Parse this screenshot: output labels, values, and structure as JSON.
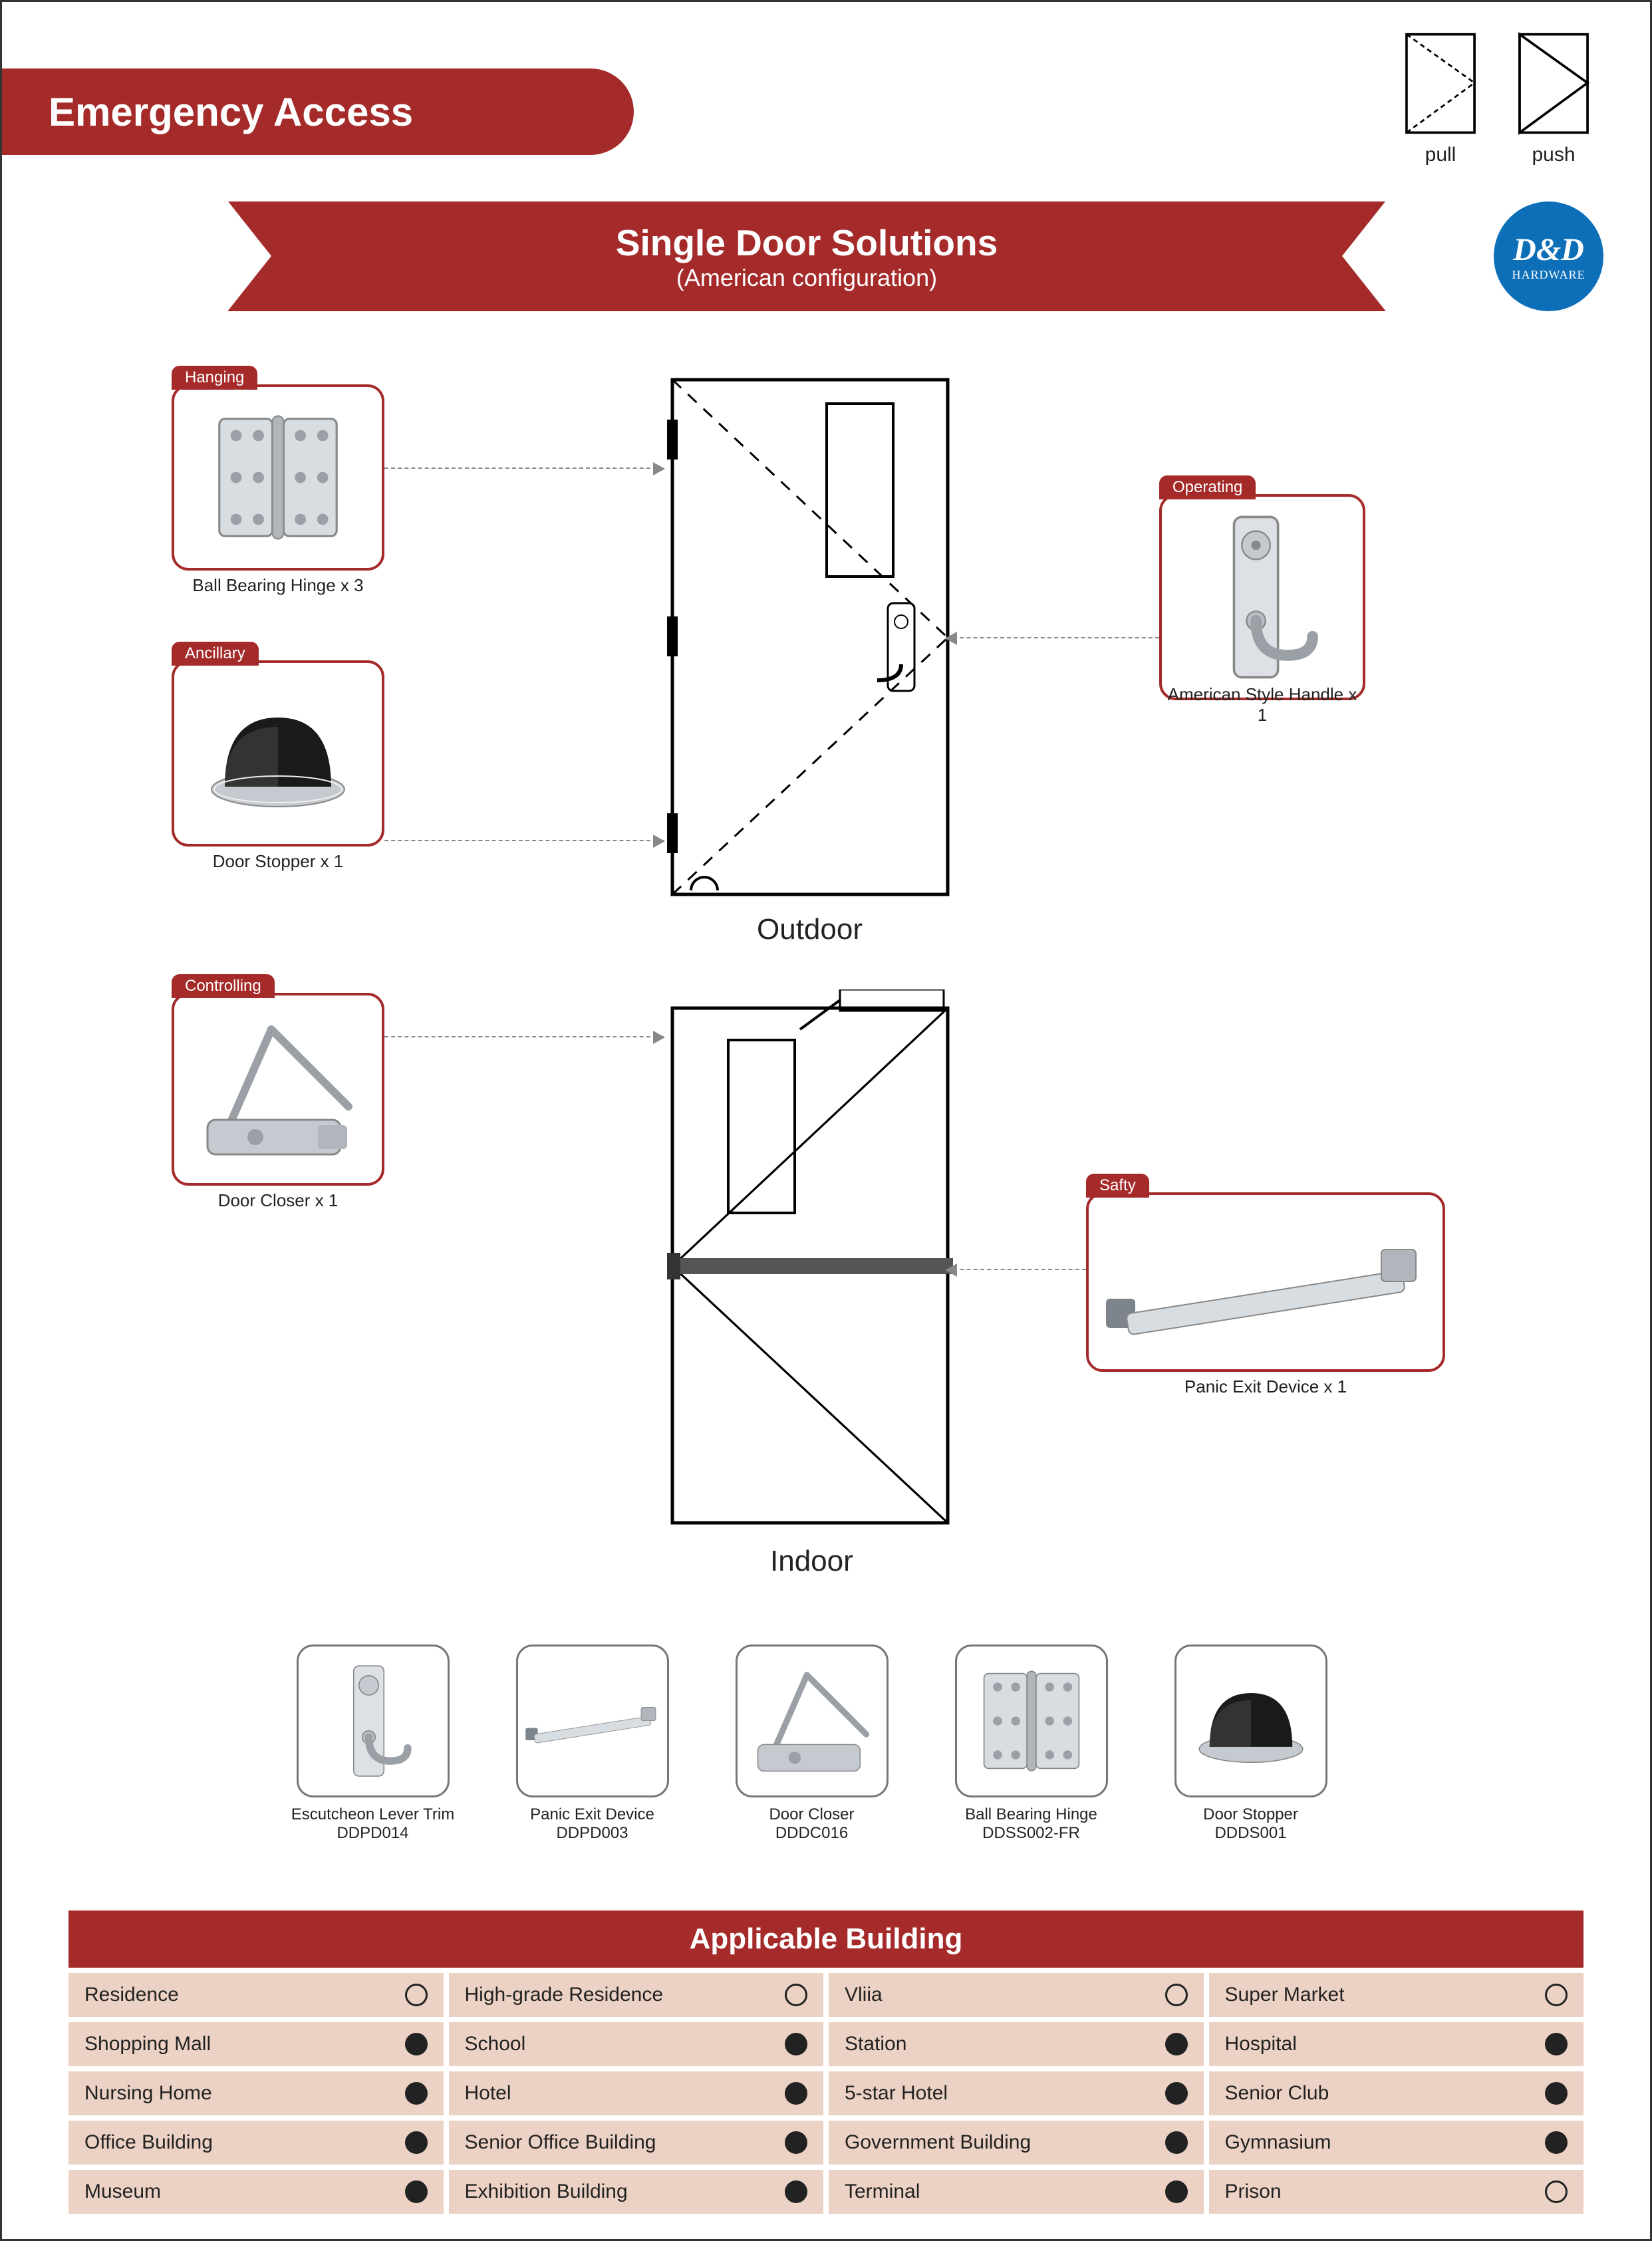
{
  "colors": {
    "brand_red": "#a52a2a",
    "logo_blue": "#0d6fb8",
    "table_bg": "#ecd2c4",
    "text": "#222222",
    "metal_light": "#d0d4d8",
    "metal_dark": "#8e959c",
    "stopper_black": "#1a1a1a"
  },
  "header": {
    "title": "Emergency Access",
    "pull_label": "pull",
    "push_label": "push"
  },
  "ribbon": {
    "title": "Single Door Solutions",
    "subtitle": "(American configuration)"
  },
  "logo": {
    "line1": "D&D",
    "line2": "HARDWARE"
  },
  "components": {
    "hanging": {
      "tag": "Hanging",
      "caption": "Ball Bearing Hinge x 3"
    },
    "ancillary": {
      "tag": "Ancillary",
      "caption": "Door Stopper x 1"
    },
    "operating": {
      "tag": "Operating",
      "caption": "American Style Handle x 1"
    },
    "controlling": {
      "tag": "Controlling",
      "caption": "Door Closer x 1"
    },
    "safty": {
      "tag": "Safty",
      "caption": "Panic  Exit  Device x 1"
    }
  },
  "door_labels": {
    "outdoor": "Outdoor",
    "indoor": "Indoor"
  },
  "thumbs": [
    {
      "name": "Escutcheon Lever Trim",
      "model": "DDPD014"
    },
    {
      "name": "Panic Exit Device",
      "model": "DDPD003"
    },
    {
      "name": "Door Closer",
      "model": "DDDC016"
    },
    {
      "name": "Ball Bearing Hinge",
      "model": "DDSS002-FR"
    },
    {
      "name": "Door Stopper",
      "model": "DDDS001"
    }
  ],
  "applicable": {
    "title": "Applicable Building",
    "items": [
      {
        "label": "Residence",
        "on": false
      },
      {
        "label": "High-grade Residence",
        "on": false
      },
      {
        "label": "Vliia",
        "on": false
      },
      {
        "label": "Super Market",
        "on": false
      },
      {
        "label": "Shopping Mall",
        "on": true
      },
      {
        "label": "School",
        "on": true
      },
      {
        "label": "Station",
        "on": true
      },
      {
        "label": "Hospital",
        "on": true
      },
      {
        "label": "Nursing Home",
        "on": true
      },
      {
        "label": "Hotel",
        "on": true
      },
      {
        "label": "5-star Hotel",
        "on": true
      },
      {
        "label": "Senior Club",
        "on": true
      },
      {
        "label": "Office Building",
        "on": true
      },
      {
        "label": "Senior Office Building",
        "on": true
      },
      {
        "label": "Government Building",
        "on": true
      },
      {
        "label": "Gymnasium",
        "on": true
      },
      {
        "label": "Museum",
        "on": true
      },
      {
        "label": "Exhibition Building",
        "on": true
      },
      {
        "label": "Terminal",
        "on": true
      },
      {
        "label": "Prison",
        "on": false
      }
    ]
  }
}
